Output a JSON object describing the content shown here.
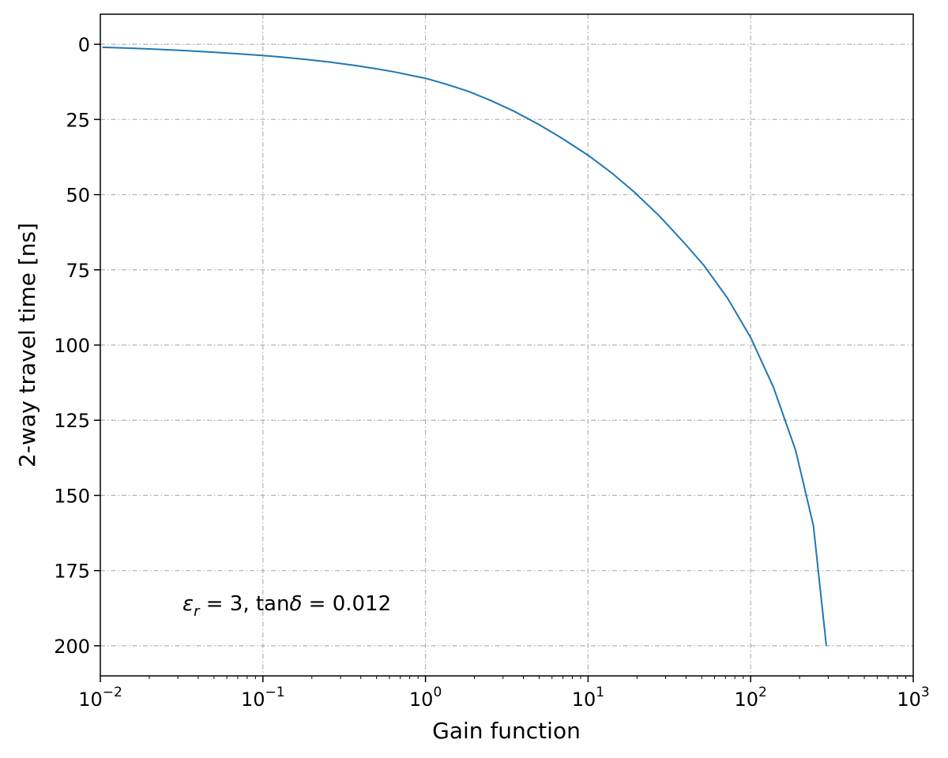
{
  "chart_data": {
    "type": "line",
    "xlabel": "Gain function",
    "ylabel": "2-way travel time [ns]",
    "x_scale": "log",
    "xlim": [
      0.01,
      1000
    ],
    "ylim": [
      210,
      -10
    ],
    "y_inverted": true,
    "grid": true,
    "x_ticks": [
      {
        "base": "10",
        "exp": "−2"
      },
      {
        "base": "10",
        "exp": "−1"
      },
      {
        "base": "10",
        "exp": "0"
      },
      {
        "base": "10",
        "exp": "1"
      },
      {
        "base": "10",
        "exp": "2"
      },
      {
        "base": "10",
        "exp": "3"
      }
    ],
    "y_ticks": [
      "0",
      "25",
      "50",
      "75",
      "100",
      "125",
      "150",
      "175",
      "200"
    ],
    "annotation": {
      "eps": "ε",
      "eps_sub": "r",
      "eps_value": " = 3, tan",
      "delta": "δ",
      "delta_value": " = 0.012"
    },
    "colors": {
      "line": "#1f77b4"
    },
    "series": [
      {
        "x": [
          0.0103,
          0.0152,
          0.0236,
          0.0335,
          0.0483,
          0.0678,
          0.0992,
          0.134,
          0.188,
          0.258,
          0.364,
          0.482,
          0.635,
          0.843,
          1.0,
          1.35,
          1.85,
          2.57,
          3.49,
          4.99,
          6.85,
          10.0,
          14.0,
          19.3,
          27.7,
          39.6,
          51.7,
          72.3,
          100,
          138,
          189,
          243,
          292
        ],
        "y": [
          1.0,
          1.3,
          1.7,
          2.1,
          2.6,
          3.1,
          3.7,
          4.3,
          5.1,
          5.9,
          7.0,
          8.0,
          9.1,
          10.5,
          11.3,
          13.3,
          15.7,
          18.9,
          22.2,
          26.7,
          31.1,
          36.9,
          42.8,
          49.2,
          57.3,
          66.4,
          73.6,
          84.5,
          97.5,
          114,
          135,
          160,
          200
        ]
      }
    ]
  }
}
